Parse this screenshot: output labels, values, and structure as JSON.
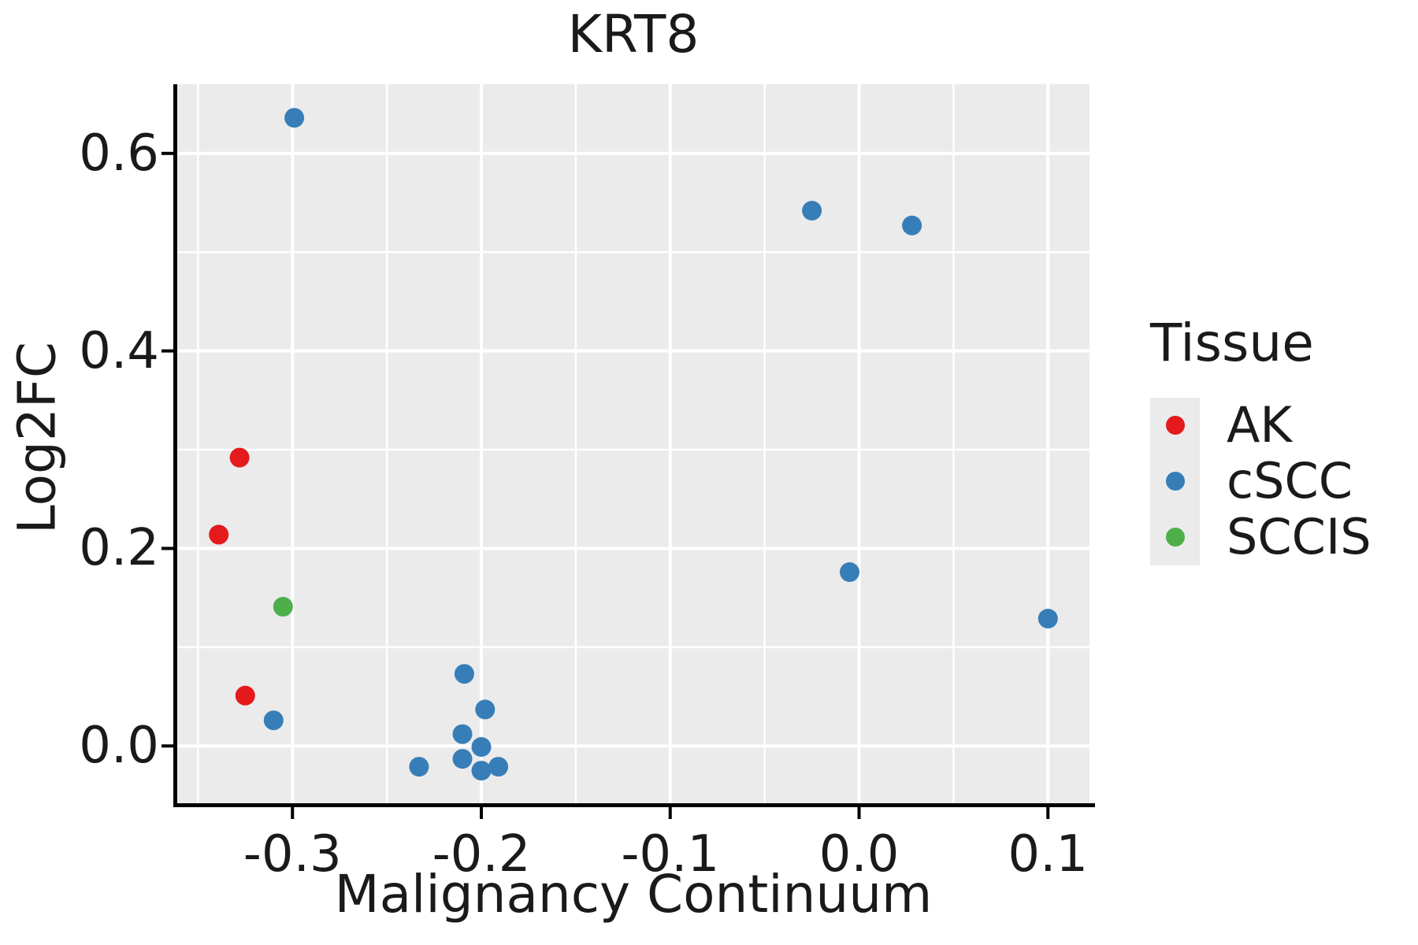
{
  "chart_data": {
    "type": "scatter",
    "title": "KRT8",
    "xlabel": "Malignancy Continuum",
    "ylabel": "Log2FC",
    "xlim": [
      -0.361,
      0.122
    ],
    "ylim": [
      -0.058,
      0.67
    ],
    "xticks": {
      "values": [
        -0.3,
        -0.2,
        -0.1,
        0.0,
        0.1
      ],
      "labels": [
        "-0.3",
        "-0.2",
        "-0.1",
        "0.0",
        "0.1"
      ]
    },
    "yticks": {
      "values": [
        0.0,
        0.2,
        0.4,
        0.6
      ],
      "labels": [
        "0.0",
        "0.2",
        "0.4",
        "0.6"
      ]
    },
    "x_minor_gridlines": [
      -0.35,
      -0.25,
      -0.15,
      -0.05,
      0.05
    ],
    "y_minor_gridlines": [
      0.1,
      0.3,
      0.5
    ],
    "grid": "white major and minor gridlines on gray panel",
    "legend": {
      "title": "Tissue",
      "position": "right"
    },
    "series": [
      {
        "name": "AK",
        "color": "#e41a1c",
        "points": [
          [
            -0.328,
            0.292
          ],
          [
            -0.339,
            0.214
          ],
          [
            -0.325,
            0.051
          ]
        ]
      },
      {
        "name": "cSCC",
        "color": "#377eb8",
        "points": [
          [
            -0.299,
            0.636
          ],
          [
            -0.025,
            0.542
          ],
          [
            0.028,
            0.527
          ],
          [
            -0.005,
            0.176
          ],
          [
            0.1,
            0.129
          ],
          [
            -0.31,
            0.026
          ],
          [
            -0.209,
            0.073
          ],
          [
            -0.198,
            0.037
          ],
          [
            -0.21,
            0.012
          ],
          [
            -0.2,
            -0.001
          ],
          [
            -0.21,
            -0.013
          ],
          [
            -0.233,
            -0.021
          ],
          [
            -0.2,
            -0.025
          ],
          [
            -0.191,
            -0.021
          ]
        ]
      },
      {
        "name": "SCCIS",
        "color": "#4daf4a",
        "points": [
          [
            -0.305,
            0.141
          ]
        ]
      }
    ],
    "marker_radius_px": 12.5
  },
  "colors": {
    "panel_background": "#ebebeb",
    "gridline": "#ffffff",
    "axis_line": "#000000",
    "text": "#1a1a1a",
    "legend_key_background": "#ebebeb"
  }
}
